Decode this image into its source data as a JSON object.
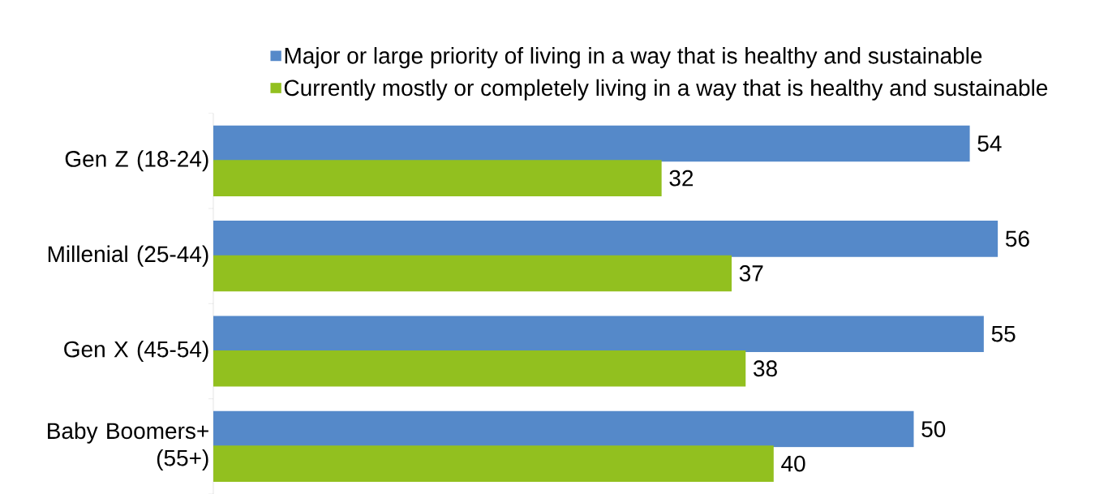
{
  "chart_data": {
    "type": "bar",
    "orientation": "horizontal",
    "categories": [
      "Gen Z (18-24)",
      "Millenial (25-44)",
      "Gen X (45-54)",
      "Baby Boomers+ (55+)"
    ],
    "series": [
      {
        "name": "Major or large priority of living in a way that is healthy and sustainable",
        "color": "#5589c9",
        "values": [
          54,
          56,
          55,
          50
        ]
      },
      {
        "name": "Currently mostly or completely living in a way that is healthy and sustainable",
        "color": "#92c01f",
        "values": [
          32,
          37,
          38,
          40
        ]
      }
    ],
    "data_labels": true,
    "legend": "top"
  }
}
